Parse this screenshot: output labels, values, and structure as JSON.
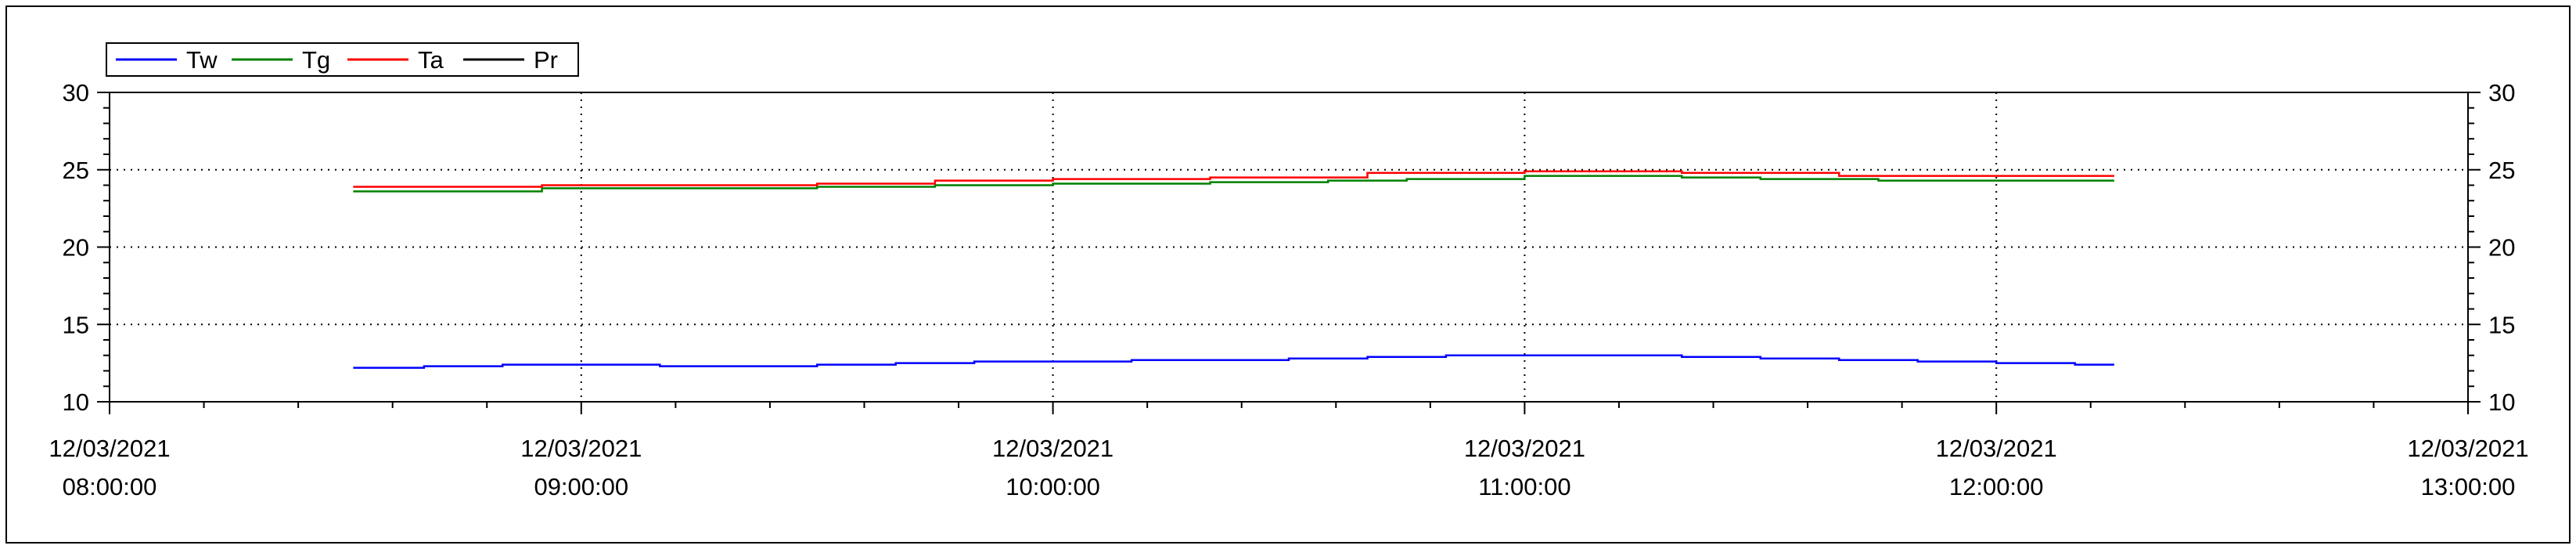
{
  "chart_data": {
    "type": "line",
    "title": "",
    "xlabel": "",
    "ylabel": "",
    "ylim": [
      10,
      30
    ],
    "yticks": [
      "10",
      "15",
      "20",
      "25",
      "30"
    ],
    "xlim": [
      "2021-03-12T08:00:00",
      "2021-03-12T13:00:00"
    ],
    "xticks": [
      {
        "date": "12/03/2021",
        "time": "08:00:00"
      },
      {
        "date": "12/03/2021",
        "time": "09:00:00"
      },
      {
        "date": "12/03/2021",
        "time": "10:00:00"
      },
      {
        "date": "12/03/2021",
        "time": "11:00:00"
      },
      {
        "date": "12/03/2021",
        "time": "12:00:00"
      },
      {
        "date": "12/03/2021",
        "time": "13:00:00"
      }
    ],
    "grid": "dotted at major ticks",
    "legend_position": "top-left",
    "series": [
      {
        "name": "Tw",
        "color": "#0000ff",
        "points": [
          [
            "08:31",
            12.2
          ],
          [
            "08:40",
            12.3
          ],
          [
            "08:50",
            12.4
          ],
          [
            "09:00",
            12.4
          ],
          [
            "09:10",
            12.3
          ],
          [
            "09:20",
            12.3
          ],
          [
            "09:30",
            12.4
          ],
          [
            "09:40",
            12.5
          ],
          [
            "09:50",
            12.6
          ],
          [
            "10:00",
            12.6
          ],
          [
            "10:10",
            12.7
          ],
          [
            "10:20",
            12.7
          ],
          [
            "10:30",
            12.8
          ],
          [
            "10:40",
            12.9
          ],
          [
            "10:50",
            13.0
          ],
          [
            "11:00",
            13.0
          ],
          [
            "11:10",
            13.0
          ],
          [
            "11:20",
            12.9
          ],
          [
            "11:30",
            12.8
          ],
          [
            "11:40",
            12.7
          ],
          [
            "11:50",
            12.6
          ],
          [
            "12:00",
            12.5
          ],
          [
            "12:10",
            12.4
          ],
          [
            "12:15",
            12.4
          ]
        ]
      },
      {
        "name": "Tg",
        "color": "#008000",
        "points": [
          [
            "08:31",
            23.6
          ],
          [
            "08:45",
            23.6
          ],
          [
            "08:55",
            23.8
          ],
          [
            "09:10",
            23.8
          ],
          [
            "09:25",
            23.8
          ],
          [
            "09:30",
            23.9
          ],
          [
            "09:45",
            24.0
          ],
          [
            "10:00",
            24.1
          ],
          [
            "10:20",
            24.2
          ],
          [
            "10:35",
            24.3
          ],
          [
            "10:45",
            24.4
          ],
          [
            "11:00",
            24.6
          ],
          [
            "11:20",
            24.5
          ],
          [
            "11:30",
            24.4
          ],
          [
            "11:45",
            24.3
          ],
          [
            "12:00",
            24.3
          ],
          [
            "12:15",
            24.3
          ]
        ]
      },
      {
        "name": "Ta",
        "color": "#ff0000",
        "points": [
          [
            "08:31",
            23.9
          ],
          [
            "08:45",
            23.9
          ],
          [
            "08:55",
            24.0
          ],
          [
            "09:10",
            24.0
          ],
          [
            "09:30",
            24.1
          ],
          [
            "09:45",
            24.3
          ],
          [
            "10:00",
            24.4
          ],
          [
            "10:20",
            24.5
          ],
          [
            "10:40",
            24.8
          ],
          [
            "11:00",
            24.9
          ],
          [
            "11:20",
            24.8
          ],
          [
            "11:40",
            24.6
          ],
          [
            "12:00",
            24.6
          ],
          [
            "12:15",
            24.6
          ]
        ]
      },
      {
        "name": "Pr",
        "color": "#000000",
        "points": []
      }
    ]
  }
}
